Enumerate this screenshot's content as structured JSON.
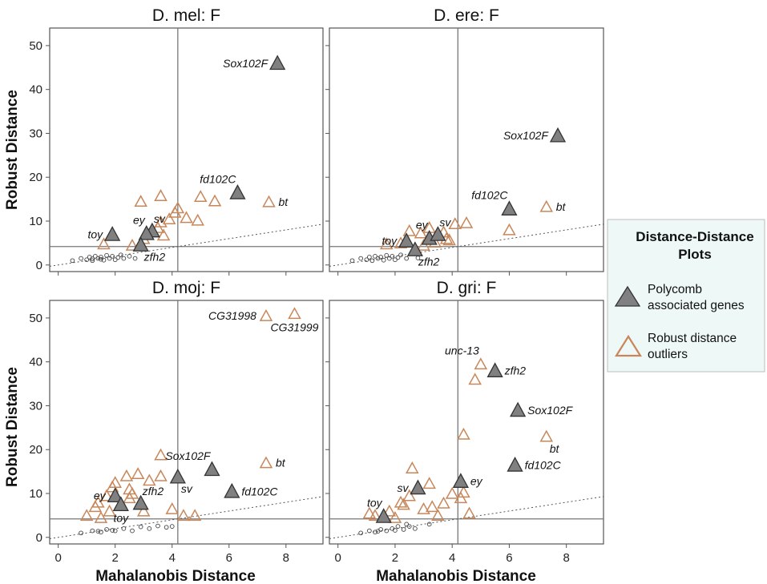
{
  "chart_data": {
    "type": "scatter",
    "xlabel": "Mahalanobis Distance",
    "ylabel": "Robust Distance",
    "xlim": [
      -0.3,
      9.3
    ],
    "ylim": [
      -1.5,
      54
    ],
    "xticks": [
      "0",
      "2",
      "4",
      "6",
      "8"
    ],
    "yticks": [
      "0",
      "10",
      "20",
      "30",
      "40",
      "50"
    ],
    "legend": {
      "title_lines": [
        "Distance-Distance",
        "Plots"
      ],
      "items": [
        {
          "lines": [
            "Polycomb",
            "associated genes"
          ],
          "marker": "filled-triangle"
        },
        {
          "lines": [
            "Robust distance",
            "outliers"
          ],
          "marker": "open-triangle"
        }
      ],
      "placement": "right"
    },
    "colors": {
      "outlier": "#c8875a",
      "polycomb_fill": "#808080",
      "polycomb_edge": "#333333",
      "normal": "#444444",
      "cutoff": "#777777"
    },
    "panels": [
      {
        "title": "D. mel: F",
        "cutoff_x": 4.2,
        "cutoff_y": 4.2,
        "fit_slope": 1.0,
        "polycomb": [
          [
            7.7,
            46
          ],
          [
            6.3,
            16.5
          ],
          [
            1.9,
            7
          ],
          [
            3.3,
            7.8
          ],
          [
            3.1,
            7.2
          ],
          [
            2.9,
            4.6
          ]
        ],
        "outliers": [
          [
            2.9,
            14.5
          ],
          [
            3.6,
            15.8
          ],
          [
            4.2,
            13
          ],
          [
            4.1,
            12
          ],
          [
            5,
            15.6
          ],
          [
            5.5,
            14.6
          ],
          [
            7.4,
            14.4
          ],
          [
            3.6,
            9.8
          ],
          [
            3.9,
            10.5
          ],
          [
            4.5,
            10.8
          ],
          [
            4.9,
            10.2
          ],
          [
            1.6,
            4.8
          ],
          [
            2.6,
            4.5
          ],
          [
            3,
            6
          ],
          [
            3.7,
            6.8
          ],
          [
            3.5,
            8.5
          ]
        ],
        "normal": [
          [
            0.5,
            1
          ],
          [
            0.8,
            1.5
          ],
          [
            1,
            1.2
          ],
          [
            1.1,
            1.8
          ],
          [
            1.2,
            1
          ],
          [
            1.3,
            2
          ],
          [
            1.4,
            1.5
          ],
          [
            1.5,
            1.8
          ],
          [
            1.6,
            1.1
          ],
          [
            1.7,
            2.2
          ],
          [
            1.8,
            1.5
          ],
          [
            1.9,
            2
          ],
          [
            2,
            1.2
          ],
          [
            2.1,
            1.7
          ],
          [
            2.2,
            2.3
          ],
          [
            2.3,
            1.5
          ],
          [
            2.5,
            2
          ],
          [
            2.7,
            1.5
          ],
          [
            1.2,
            1.4
          ],
          [
            1.5,
            1.3
          ]
        ],
        "labels": [
          {
            "text": "Sox102F",
            "x": 7.7,
            "y": 46,
            "pos": "left"
          },
          {
            "text": "fd102C",
            "x": 6.3,
            "y": 16.5,
            "pos": "topleft"
          },
          {
            "text": "bt",
            "x": 7.4,
            "y": 14.4,
            "pos": "right"
          },
          {
            "text": "toy",
            "x": 1.9,
            "y": 7,
            "pos": "left"
          },
          {
            "text": "sv",
            "x": 3.3,
            "y": 7.8,
            "pos": "topright"
          },
          {
            "text": "ey",
            "x": 3.1,
            "y": 7.2,
            "pos": "topleft"
          },
          {
            "text": "zfh2",
            "x": 2.9,
            "y": 4.6,
            "pos": "belowright"
          }
        ]
      },
      {
        "title": "D. ere: F",
        "cutoff_x": 4.2,
        "cutoff_y": 4.2,
        "fit_slope": 1.0,
        "polycomb": [
          [
            7.7,
            29.5
          ],
          [
            6,
            12.8
          ],
          [
            2.4,
            5.5
          ],
          [
            3.2,
            6.1
          ],
          [
            3.5,
            7
          ],
          [
            2.7,
            3.5
          ]
        ],
        "outliers": [
          [
            7.3,
            13.3
          ],
          [
            6,
            8
          ],
          [
            4.1,
            9.4
          ],
          [
            4.5,
            9.6
          ],
          [
            2.5,
            7.8
          ],
          [
            3.2,
            8.5
          ],
          [
            3.7,
            7.5
          ],
          [
            3.8,
            6
          ],
          [
            2.2,
            5
          ],
          [
            3,
            4.5
          ],
          [
            3.4,
            5.2
          ],
          [
            3.9,
            5.7
          ],
          [
            2.9,
            7.3
          ],
          [
            1.7,
            4.8
          ]
        ],
        "normal": [
          [
            0.5,
            1
          ],
          [
            0.8,
            1.5
          ],
          [
            1,
            1.2
          ],
          [
            1.1,
            1.8
          ],
          [
            1.2,
            1
          ],
          [
            1.3,
            2
          ],
          [
            1.4,
            1.5
          ],
          [
            1.5,
            1.8
          ],
          [
            1.6,
            1.1
          ],
          [
            1.7,
            2.2
          ],
          [
            1.8,
            1.5
          ],
          [
            1.9,
            2
          ],
          [
            2,
            1.2
          ],
          [
            2.1,
            1.7
          ],
          [
            2.2,
            2.3
          ],
          [
            2.4,
            1.5
          ],
          [
            2.6,
            2.6
          ],
          [
            2.8,
            1.6
          ]
        ],
        "labels": [
          {
            "text": "Sox102F",
            "x": 7.7,
            "y": 29.5,
            "pos": "left"
          },
          {
            "text": "fd102C",
            "x": 6,
            "y": 12.8,
            "pos": "topleft"
          },
          {
            "text": "bt",
            "x": 7.3,
            "y": 13.3,
            "pos": "right"
          },
          {
            "text": "toy",
            "x": 2.4,
            "y": 5.5,
            "pos": "left"
          },
          {
            "text": "ey",
            "x": 3.2,
            "y": 6.1,
            "pos": "topleft"
          },
          {
            "text": "sv",
            "x": 3.5,
            "y": 7,
            "pos": "topright"
          },
          {
            "text": "zfh2",
            "x": 2.7,
            "y": 3.5,
            "pos": "belowright"
          }
        ]
      },
      {
        "title": "D. moj: F",
        "cutoff_x": 4.2,
        "cutoff_y": 4.2,
        "fit_slope": 1.0,
        "polycomb": [
          [
            5.4,
            15.5
          ],
          [
            6.1,
            10.5
          ],
          [
            4.2,
            13.8
          ],
          [
            2.9,
            7.8
          ],
          [
            2,
            9.5
          ],
          [
            2.2,
            7.5
          ]
        ],
        "outliers": [
          [
            7.3,
            50.5
          ],
          [
            8.3,
            51
          ],
          [
            7.3,
            17
          ],
          [
            3.6,
            18.8
          ],
          [
            3.6,
            14
          ],
          [
            2.4,
            14
          ],
          [
            2.8,
            14.5
          ],
          [
            2,
            12.5
          ],
          [
            3.2,
            13
          ],
          [
            1.9,
            11.5
          ],
          [
            2.5,
            11
          ],
          [
            1.4,
            8
          ],
          [
            1.3,
            7
          ],
          [
            1.8,
            6
          ],
          [
            2.5,
            9
          ],
          [
            3,
            6
          ],
          [
            4,
            6.5
          ],
          [
            1,
            5
          ],
          [
            1.5,
            4.5
          ],
          [
            4.4,
            5
          ],
          [
            4.8,
            5
          ],
          [
            2.6,
            10
          ],
          [
            1.7,
            9.5
          ]
        ],
        "normal": [
          [
            0.8,
            1
          ],
          [
            1.2,
            1.5
          ],
          [
            1.5,
            1.2
          ],
          [
            1.7,
            1.8
          ],
          [
            2,
            1.5
          ],
          [
            2.3,
            2
          ],
          [
            2.6,
            1.5
          ],
          [
            2.9,
            2.4
          ],
          [
            3.2,
            2
          ],
          [
            3.5,
            2.6
          ],
          [
            3.8,
            2.3
          ],
          [
            4,
            2.5
          ],
          [
            1.4,
            1.4
          ],
          [
            1.9,
            1.6
          ]
        ],
        "labels": [
          {
            "text": "CG31998",
            "x": 7.3,
            "y": 50.5,
            "pos": "left"
          },
          {
            "text": "CG31999",
            "x": 8.3,
            "y": 51,
            "pos": "below"
          },
          {
            "text": "Sox102F",
            "x": 5.4,
            "y": 15.5,
            "pos": "topleft"
          },
          {
            "text": "bt",
            "x": 7.3,
            "y": 17,
            "pos": "right"
          },
          {
            "text": "fd102C",
            "x": 6.1,
            "y": 10.5,
            "pos": "right"
          },
          {
            "text": "zfh2",
            "x": 2.9,
            "y": 7.8,
            "pos": "topright"
          },
          {
            "text": "sv",
            "x": 4.2,
            "y": 13.8,
            "pos": "belowright"
          },
          {
            "text": "ey",
            "x": 2,
            "y": 9.5,
            "pos": "left"
          },
          {
            "text": "toy",
            "x": 2.2,
            "y": 7.5,
            "pos": "below"
          }
        ]
      },
      {
        "title": "D. gri: F",
        "cutoff_x": 4.2,
        "cutoff_y": 4.2,
        "fit_slope": 1.0,
        "polycomb": [
          [
            5.5,
            38
          ],
          [
            6.3,
            29
          ],
          [
            6.2,
            16.5
          ],
          [
            4.3,
            12.8
          ],
          [
            2.8,
            11.3
          ],
          [
            1.6,
            4.8
          ]
        ],
        "outliers": [
          [
            5,
            39.5
          ],
          [
            4.8,
            36
          ],
          [
            7.3,
            23
          ],
          [
            4.4,
            23.5
          ],
          [
            2.6,
            15.8
          ],
          [
            3.2,
            12.3
          ],
          [
            4.4,
            10.3
          ],
          [
            2.5,
            9.5
          ],
          [
            2.2,
            8
          ],
          [
            3.3,
            7
          ],
          [
            3.7,
            7.8
          ],
          [
            4,
            10
          ],
          [
            4.3,
            9
          ],
          [
            4.6,
            5.5
          ],
          [
            1.3,
            5
          ],
          [
            1.8,
            6
          ],
          [
            2,
            4.5
          ],
          [
            3,
            6.5
          ],
          [
            3.5,
            5
          ],
          [
            1.1,
            5.5
          ],
          [
            2.3,
            7.5
          ]
        ],
        "normal": [
          [
            0.8,
            1
          ],
          [
            1.1,
            1.5
          ],
          [
            1.3,
            1.2
          ],
          [
            1.5,
            1.8
          ],
          [
            1.7,
            1.5
          ],
          [
            1.9,
            2
          ],
          [
            2.1,
            2.5
          ],
          [
            2.3,
            1.8
          ],
          [
            2.5,
            2.5
          ],
          [
            2.7,
            2
          ],
          [
            1.4,
            1.4
          ],
          [
            2,
            1.6
          ],
          [
            2.4,
            3
          ],
          [
            3.2,
            3
          ]
        ],
        "labels": [
          {
            "text": "unc-13",
            "x": 5,
            "y": 39.5,
            "pos": "topleft"
          },
          {
            "text": "zfh2",
            "x": 5.5,
            "y": 38,
            "pos": "right"
          },
          {
            "text": "Sox102F",
            "x": 6.3,
            "y": 29,
            "pos": "right"
          },
          {
            "text": "bt",
            "x": 7.3,
            "y": 23,
            "pos": "belowright"
          },
          {
            "text": "fd102C",
            "x": 6.2,
            "y": 16.5,
            "pos": "right"
          },
          {
            "text": "ey",
            "x": 4.3,
            "y": 12.8,
            "pos": "right"
          },
          {
            "text": "sv",
            "x": 2.8,
            "y": 11.3,
            "pos": "left"
          },
          {
            "text": "toy",
            "x": 1.6,
            "y": 4.8,
            "pos": "topleft"
          }
        ]
      }
    ]
  }
}
